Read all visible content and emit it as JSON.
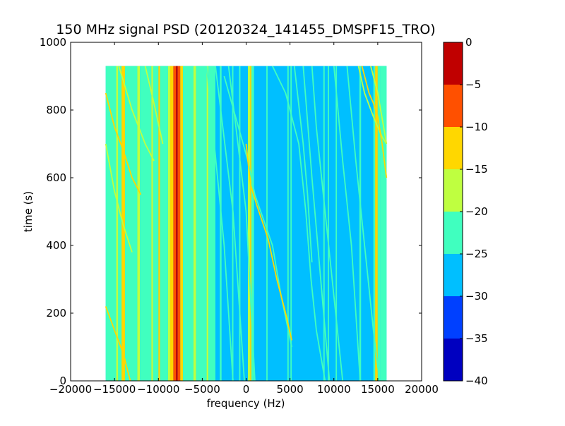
{
  "figure": {
    "title": "150 MHz signal PSD (20120324_141455_DMSPF15_TRO)",
    "colors": {
      "background": "#00bfff",
      "frame": "#000000",
      "cmap": [
        "#0000c0",
        "#0040ff",
        "#00bfff",
        "#40ffbf",
        "#bfff40",
        "#ffd700",
        "#ff5000",
        "#c00000"
      ]
    }
  },
  "chart_data": {
    "type": "heatmap",
    "title": "150 MHz signal PSD (20120324_141455_DMSPF15_TRO)",
    "xlabel": "frequency (Hz)",
    "ylabel": "time (s)",
    "xlim": [
      -20000,
      20000
    ],
    "ylim": [
      0,
      1000
    ],
    "x_ticks": [
      -20000,
      -15000,
      -10000,
      -5000,
      0,
      5000,
      10000,
      15000,
      20000
    ],
    "x_tick_labels": [
      "−20000",
      "−15000",
      "−10000",
      "−5000",
      "0",
      "5000",
      "10000",
      "15000",
      "20000"
    ],
    "y_ticks": [
      0,
      200,
      400,
      600,
      800,
      1000
    ],
    "y_tick_labels": [
      "0",
      "200",
      "400",
      "600",
      "800",
      "1000"
    ],
    "data_extent": {
      "x": [
        -16000,
        16000
      ],
      "y": [
        0,
        930
      ]
    },
    "colorbar": {
      "range": [
        -40,
        0
      ],
      "levels": [
        -40,
        -35,
        -30,
        -25,
        -20,
        -15,
        -10,
        -5,
        0
      ],
      "tick_labels": [
        "−40",
        "−35",
        "−30",
        "−25",
        "−20",
        "−15",
        "−10",
        "−5",
        "0"
      ]
    },
    "background_level": -27,
    "vertical_bands": [
      {
        "x0": -16000,
        "x1": -14200,
        "level": -22
      },
      {
        "x0": -14800,
        "x1": -14600,
        "level": -17
      },
      {
        "x0": -14200,
        "x1": -13800,
        "level": -12
      },
      {
        "x0": -13800,
        "x1": -12400,
        "level": -22
      },
      {
        "x0": -12400,
        "x1": -12100,
        "level": -17
      },
      {
        "x0": -12100,
        "x1": -10800,
        "level": -22
      },
      {
        "x0": -10800,
        "x1": -10600,
        "level": -17
      },
      {
        "x0": -10600,
        "x1": -10000,
        "level": -22
      },
      {
        "x0": -10000,
        "x1": -9800,
        "level": -12
      },
      {
        "x0": -9800,
        "x1": -8900,
        "level": -22
      },
      {
        "x0": -8900,
        "x1": -8650,
        "level": -17
      },
      {
        "x0": -8650,
        "x1": -8300,
        "level": -12
      },
      {
        "x0": -8300,
        "x1": -8000,
        "level": -7
      },
      {
        "x0": -8000,
        "x1": -7800,
        "level": -2
      },
      {
        "x0": -7800,
        "x1": -7500,
        "level": -7
      },
      {
        "x0": -7500,
        "x1": -7200,
        "level": -12
      },
      {
        "x0": -7200,
        "x1": -6000,
        "level": -22
      },
      {
        "x0": -6000,
        "x1": -5700,
        "level": -17
      },
      {
        "x0": -5700,
        "x1": -4500,
        "level": -22
      },
      {
        "x0": -4500,
        "x1": -4300,
        "level": -17
      },
      {
        "x0": -4300,
        "x1": -3500,
        "level": -22
      },
      {
        "x0": -3000,
        "x1": -2800,
        "level": -22
      },
      {
        "x0": -1600,
        "x1": -1450,
        "level": -22
      },
      {
        "x0": -800,
        "x1": -650,
        "level": -22
      },
      {
        "x0": 200,
        "x1": 450,
        "level": -17
      },
      {
        "x0": 450,
        "x1": 600,
        "level": -12
      },
      {
        "x0": 600,
        "x1": 900,
        "level": -22
      },
      {
        "x0": 2300,
        "x1": 2450,
        "level": -22
      },
      {
        "x0": 4700,
        "x1": 4850,
        "level": -22
      },
      {
        "x0": 5050,
        "x1": 5200,
        "level": -22
      },
      {
        "x0": 8800,
        "x1": 8950,
        "level": -22
      },
      {
        "x0": 9300,
        "x1": 9450,
        "level": -22
      },
      {
        "x0": 10200,
        "x1": 10350,
        "level": -22
      },
      {
        "x0": 12900,
        "x1": 13100,
        "level": -22
      },
      {
        "x0": 14500,
        "x1": 14700,
        "level": -22
      },
      {
        "x0": 14700,
        "x1": 15000,
        "level": -12
      },
      {
        "x0": 15000,
        "x1": 15300,
        "level": -22
      },
      {
        "x0": 15300,
        "x1": 16000,
        "level": -22
      }
    ],
    "drift_lines": [
      {
        "level": -22,
        "points": [
          [
            -4500,
            930
          ],
          [
            -2500,
            400
          ],
          [
            -1500,
            0
          ]
        ]
      },
      {
        "level": -22,
        "points": [
          [
            -3500,
            930
          ],
          [
            -1500,
            500
          ],
          [
            -200,
            0
          ]
        ]
      },
      {
        "level": -22,
        "points": [
          [
            -2000,
            930
          ],
          [
            0,
            500
          ],
          [
            1000,
            0
          ]
        ]
      },
      {
        "level": -22,
        "points": [
          [
            -2500,
            900
          ],
          [
            200,
            650
          ],
          [
            1000,
            550
          ],
          [
            3000,
            400
          ],
          [
            4000,
            250
          ],
          [
            5200,
            100
          ]
        ]
      },
      {
        "level": -12,
        "points": [
          [
            0,
            700
          ],
          [
            500,
            580
          ],
          [
            1200,
            520
          ],
          [
            2500,
            420
          ],
          [
            3500,
            300
          ],
          [
            4500,
            200
          ],
          [
            5200,
            120
          ]
        ]
      },
      {
        "level": -22,
        "points": [
          [
            3000,
            930
          ],
          [
            4500,
            850
          ],
          [
            6000,
            700
          ],
          [
            6800,
            500
          ],
          [
            7400,
            300
          ],
          [
            8000,
            150
          ],
          [
            9000,
            0
          ]
        ]
      },
      {
        "level": -22,
        "points": [
          [
            5500,
            930
          ],
          [
            6500,
            700
          ],
          [
            7000,
            550
          ],
          [
            7500,
            350
          ]
        ]
      },
      {
        "level": -22,
        "points": [
          [
            6500,
            930
          ],
          [
            7500,
            600
          ],
          [
            8500,
            300
          ],
          [
            9500,
            0
          ]
        ]
      },
      {
        "level": -22,
        "points": [
          [
            7500,
            930
          ],
          [
            8000,
            750
          ],
          [
            9000,
            500
          ],
          [
            10000,
            250
          ],
          [
            11000,
            0
          ]
        ]
      },
      {
        "level": -22,
        "points": [
          [
            10000,
            930
          ],
          [
            11000,
            650
          ],
          [
            12000,
            400
          ],
          [
            12500,
            200
          ],
          [
            13000,
            0
          ]
        ]
      },
      {
        "level": -22,
        "points": [
          [
            11500,
            930
          ],
          [
            12500,
            650
          ],
          [
            13500,
            400
          ],
          [
            14500,
            150
          ],
          [
            15200,
            0
          ]
        ]
      },
      {
        "level": -17,
        "points": [
          [
            12800,
            930
          ],
          [
            13500,
            850
          ],
          [
            14500,
            780
          ],
          [
            15500,
            720
          ],
          [
            16000,
            700
          ]
        ]
      },
      {
        "level": -12,
        "points": [
          [
            13200,
            930
          ],
          [
            14000,
            850
          ],
          [
            14500,
            820
          ],
          [
            15000,
            780
          ],
          [
            15500,
            700
          ],
          [
            16000,
            600
          ]
        ]
      },
      {
        "level": -17,
        "points": [
          [
            14200,
            930
          ],
          [
            15000,
            850
          ],
          [
            16000,
            700
          ]
        ]
      },
      {
        "level": -12,
        "points": [
          [
            -16000,
            850
          ],
          [
            -15000,
            750
          ],
          [
            -14000,
            680
          ],
          [
            -13000,
            600
          ],
          [
            -12000,
            550
          ]
        ]
      },
      {
        "level": -17,
        "points": [
          [
            -16000,
            700
          ],
          [
            -15000,
            560
          ],
          [
            -14000,
            460
          ],
          [
            -13000,
            380
          ]
        ]
      },
      {
        "level": -12,
        "points": [
          [
            -16000,
            220
          ],
          [
            -15000,
            150
          ],
          [
            -14000,
            80
          ],
          [
            -13200,
            0
          ]
        ]
      },
      {
        "level": -17,
        "points": [
          [
            -11500,
            930
          ],
          [
            -10500,
            820
          ],
          [
            -9500,
            700
          ]
        ]
      },
      {
        "level": -17,
        "points": [
          [
            -14500,
            930
          ],
          [
            -13000,
            800
          ],
          [
            -11500,
            700
          ],
          [
            -10500,
            650
          ]
        ]
      }
    ]
  }
}
